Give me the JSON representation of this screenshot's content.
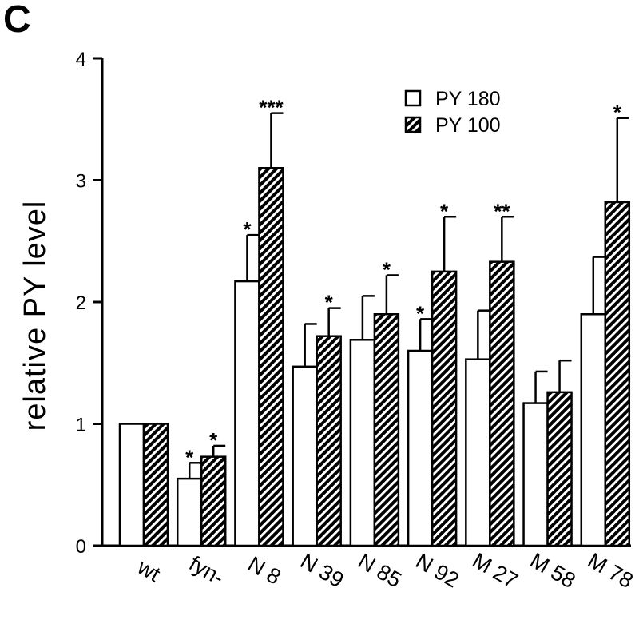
{
  "panel_label": "C",
  "chart_data": {
    "type": "bar",
    "title": "",
    "xlabel": "",
    "ylabel": "relative PY level",
    "ylim": [
      0,
      4
    ],
    "yticks": [
      "0",
      "1",
      "2",
      "3",
      "4"
    ],
    "grid": false,
    "legend_position": "top-right",
    "categories": [
      "wt",
      "fyn-",
      "N 8",
      "N 39",
      "N 85",
      "N 92",
      "M 27",
      "M 58",
      "M 78"
    ],
    "series": [
      {
        "name": "PY 180",
        "fill": "open",
        "values": [
          1.0,
          0.55,
          2.17,
          1.47,
          1.69,
          1.6,
          1.53,
          1.17,
          1.9
        ],
        "errors": [
          0.0,
          0.13,
          0.38,
          0.35,
          0.36,
          0.26,
          0.4,
          0.26,
          0.47
        ],
        "significance": [
          "",
          "*",
          "*",
          "",
          "",
          "*",
          "",
          "",
          ""
        ]
      },
      {
        "name": "PY 100",
        "fill": "hatched",
        "values": [
          1.0,
          0.73,
          3.1,
          1.72,
          1.9,
          2.25,
          2.33,
          1.26,
          2.82
        ],
        "errors": [
          0.0,
          0.09,
          0.45,
          0.23,
          0.32,
          0.45,
          0.37,
          0.26,
          0.69
        ],
        "significance": [
          "",
          "*",
          "***",
          "*",
          "*",
          "*",
          "**",
          "",
          "*"
        ]
      }
    ]
  }
}
